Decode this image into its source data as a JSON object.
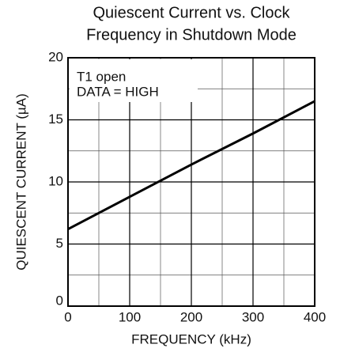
{
  "chart_data": {
    "type": "line",
    "title": [
      "Quiescent Current vs. Clock",
      "Frequency in Shutdown Mode"
    ],
    "xlabel": "FREQUENCY (kHz)",
    "ylabel": "QUIESCENT CURRENT (µA)",
    "annotation": [
      "T1 open",
      "DATA = HIGH"
    ],
    "x": [
      0,
      100,
      200,
      300,
      400
    ],
    "series": [
      {
        "name": "Quiescent Current",
        "color": "#000000",
        "values": [
          6.2,
          8.8,
          11.4,
          13.9,
          16.5
        ]
      }
    ],
    "xlim": [
      0,
      400
    ],
    "xticks": [
      0,
      100,
      200,
      300,
      400
    ],
    "xminor": [
      50,
      150,
      250,
      350
    ],
    "ylim": [
      0,
      20
    ],
    "yticks": [
      0,
      5,
      10,
      15,
      20
    ],
    "yminor": [
      2.5,
      7.5,
      12.5,
      17.5
    ],
    "grid": true
  }
}
